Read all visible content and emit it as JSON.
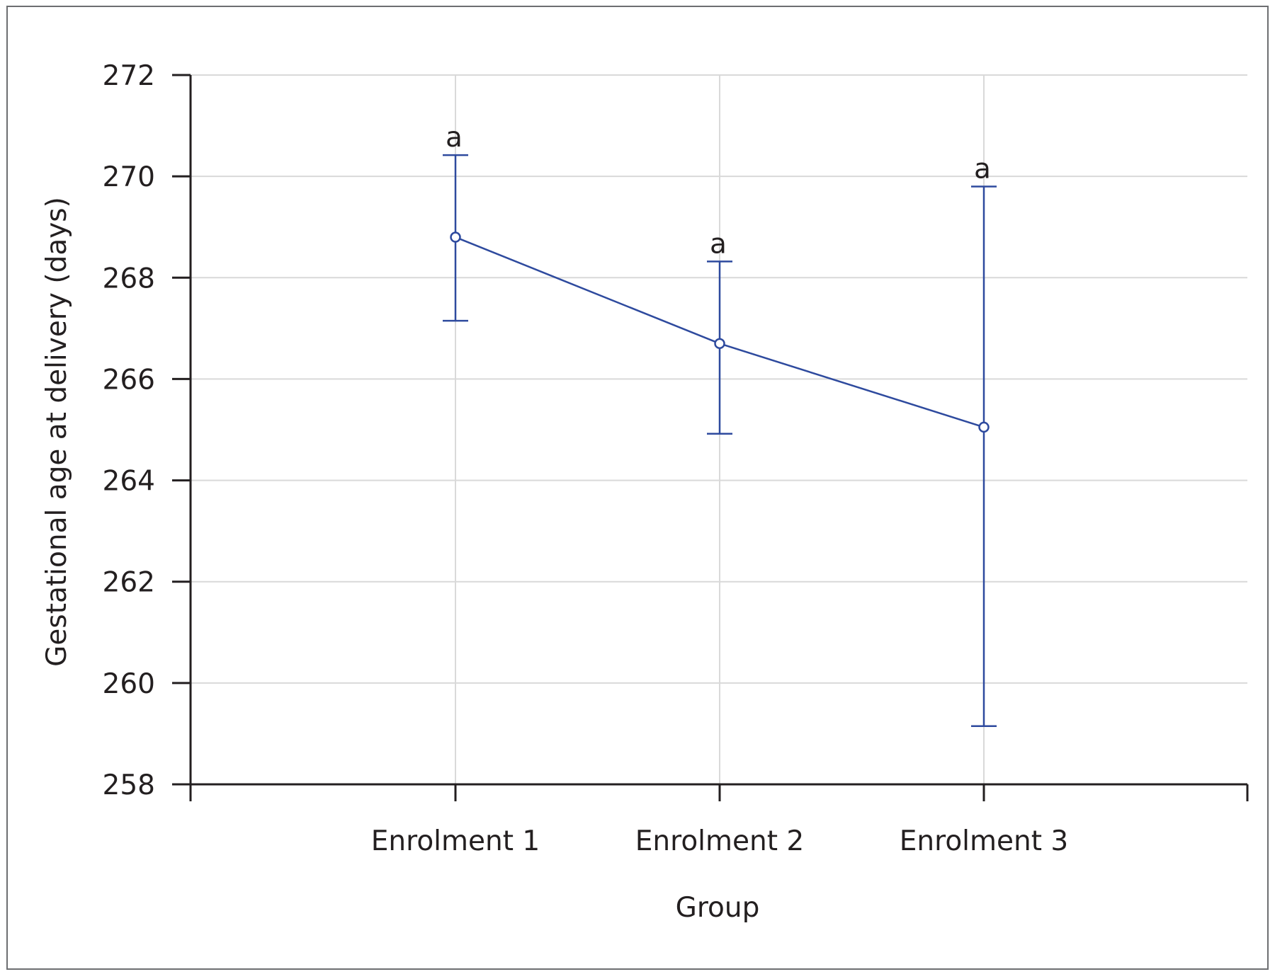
{
  "chart_data": {
    "type": "line",
    "xlabel": "Group",
    "ylabel": "Gestational age at delivery (days)",
    "categories": [
      "Enrolment 1",
      "Enrolment 2",
      "Enrolment 3"
    ],
    "ylim": [
      258,
      272
    ],
    "yticks": [
      258,
      260,
      262,
      264,
      266,
      268,
      270,
      272
    ],
    "grid": true,
    "series": [
      {
        "values": [
          268.8,
          266.7,
          265.05
        ],
        "error_low": [
          267.15,
          264.92,
          259.15
        ],
        "error_high": [
          270.42,
          268.32,
          269.8
        ],
        "labels": [
          "a",
          "a",
          "a"
        ],
        "color": "#2e4a9e"
      }
    ]
  }
}
